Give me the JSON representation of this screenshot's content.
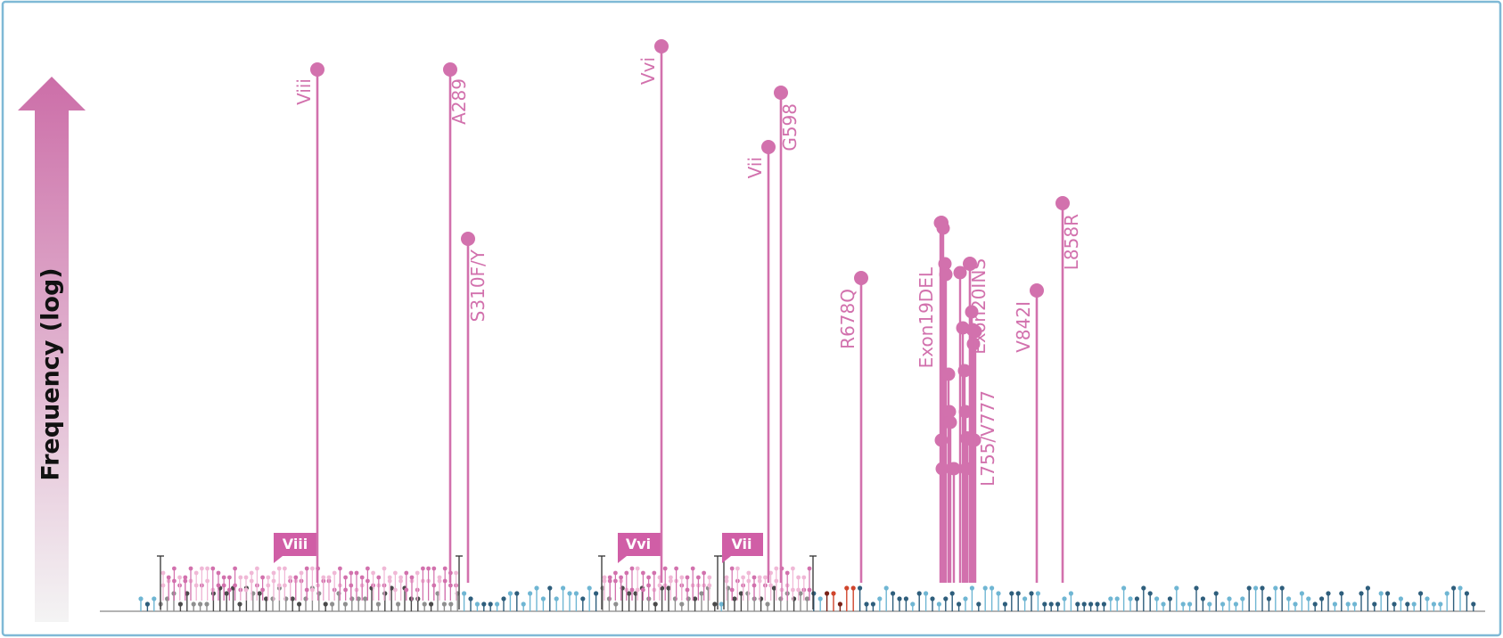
{
  "axis_label": "Frequency (log)",
  "colors": {
    "frame": "#7fb9d6",
    "mutation": "#d271ad",
    "box_fill": "#d05ea6",
    "residue_light": "#6fb6d3",
    "residue_dark": "#2e5e7c",
    "residue_pink": "#d271ad",
    "residue_lightpink": "#f0b8d6",
    "residue_gray": "#8f8f8f",
    "residue_darkgray": "#4a4a4a",
    "residue_red": "#d0452c",
    "arrow_top": "#cc6ea8",
    "arrow_bottom": "#f4f4f4"
  },
  "domain_boxes": [
    {
      "label": "Viii"
    },
    {
      "label": "Vvi"
    },
    {
      "label": "Vii"
    }
  ],
  "mutations": [
    {
      "label": "Viii",
      "side": "left"
    },
    {
      "label": "A289",
      "side": "right"
    },
    {
      "label": "S310F/Y",
      "side": "right"
    },
    {
      "label": "Vvi",
      "side": "left"
    },
    {
      "label": "Vii",
      "side": "left"
    },
    {
      "label": "G598",
      "side": "right"
    },
    {
      "label": "R678Q",
      "side": "left"
    },
    {
      "label": "Exon19DEL",
      "side": "left"
    },
    {
      "label": "Exon20INS",
      "side": "right"
    },
    {
      "label": "L755/V777",
      "side": "right"
    },
    {
      "label": "V842I",
      "side": "left"
    },
    {
      "label": "L858R",
      "side": "right"
    }
  ]
}
